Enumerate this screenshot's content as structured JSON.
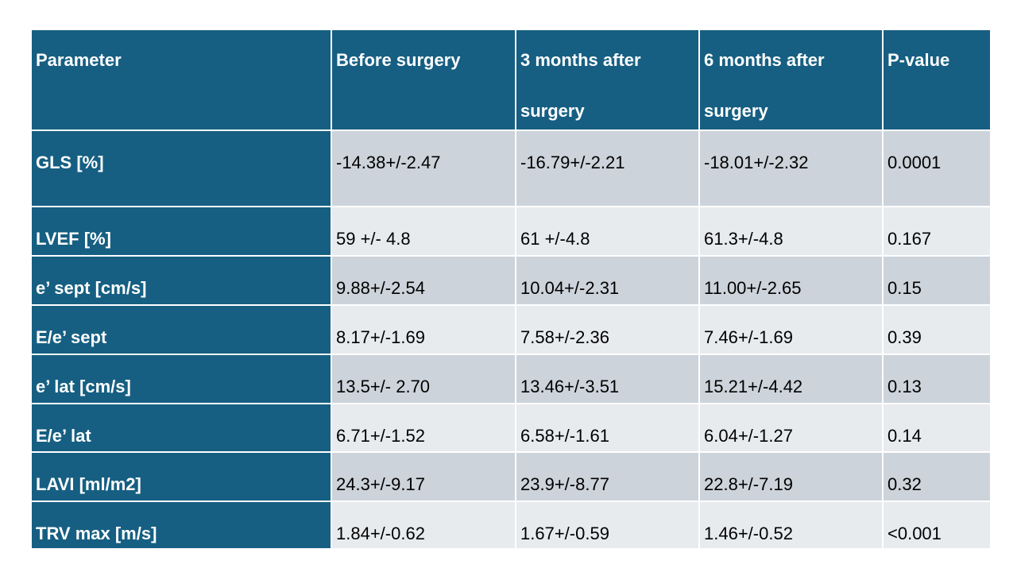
{
  "table": {
    "header": [
      "Parameter",
      "Before surgery",
      "3 months after surgery",
      "6 months after surgery",
      "P-value"
    ],
    "rows": [
      [
        "GLS [%]",
        "-14.38+/-2.47",
        "-16.79+/-2.21",
        "-18.01+/-2.32",
        "0.0001"
      ],
      [
        "LVEF [%]",
        "59 +/- 4.8",
        "61 +/-4.8",
        "61.3+/-4.8",
        "0.167"
      ],
      [
        "e’ sept [cm/s]",
        "9.88+/-2.54",
        "10.04+/-2.31",
        "11.00+/-2.65",
        "0.15"
      ],
      [
        "E/e’ sept",
        "8.17+/-1.69",
        "7.58+/-2.36",
        "7.46+/-1.69",
        "0.39"
      ],
      [
        "e’ lat [cm/s]",
        "13.5+/- 2.70",
        "13.46+/-3.51",
        "15.21+/-4.42",
        "0.13"
      ],
      [
        "E/e’ lat",
        "6.71+/-1.52",
        "6.58+/-1.61",
        "6.04+/-1.27",
        "0.14"
      ],
      [
        "LAVI [ml/m2]",
        "24.3+/-9.17",
        "23.9+/-8.77",
        "22.8+/-7.19",
        "0.32"
      ],
      [
        "TRV max [m/s]",
        "1.84+/-0.62",
        "1.67+/-0.59",
        "1.46+/-0.52",
        "<0.001"
      ]
    ]
  }
}
